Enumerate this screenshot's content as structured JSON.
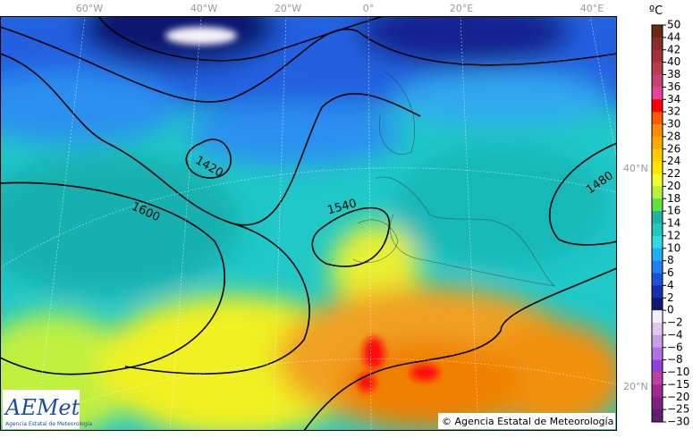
{
  "map": {
    "longitude_labels": [
      "60°W",
      "40°W",
      "20°W",
      "0°",
      "20°E",
      "40°E"
    ],
    "latitude_labels": [
      "40°N",
      "20°N"
    ],
    "contour_labels": [
      "1420",
      "1600",
      "1540",
      "1480"
    ],
    "copyright": "© Agencia Estatal de Meteorología",
    "logo": {
      "name": "AEMet",
      "subtitle": "Agencia Estatal de Meteorología"
    }
  },
  "colorbar": {
    "unit": "ºC",
    "labels": [
      "50",
      "44",
      "42",
      "40",
      "38",
      "36",
      "34",
      "32",
      "30",
      "28",
      "26",
      "24",
      "22",
      "20",
      "18",
      "16",
      "14",
      "12",
      "10",
      "8",
      "6",
      "4",
      "2",
      "0",
      "−2",
      "−4",
      "−6",
      "−8",
      "−10",
      "−15",
      "−20",
      "−25",
      "−30"
    ],
    "colors": [
      "#6b2a12",
      "#8a2c2c",
      "#a33338",
      "#b73c4c",
      "#c4417a",
      "#e0449e",
      "#ff0000",
      "#ff5a00",
      "#ff8c00",
      "#ffaa00",
      "#ffcc00",
      "#ffe800",
      "#f0ff30",
      "#b8f040",
      "#60e040",
      "#20b0a0",
      "#20c8c0",
      "#30d8e0",
      "#20b0f0",
      "#2080f0",
      "#2050d8",
      "#1830a8",
      "#101870",
      "#f4f0f8",
      "#e0c8f0",
      "#c8a0e8",
      "#b070e0",
      "#9040d8",
      "#c040a0",
      "#a02890",
      "#802080",
      "#602070"
    ]
  }
}
